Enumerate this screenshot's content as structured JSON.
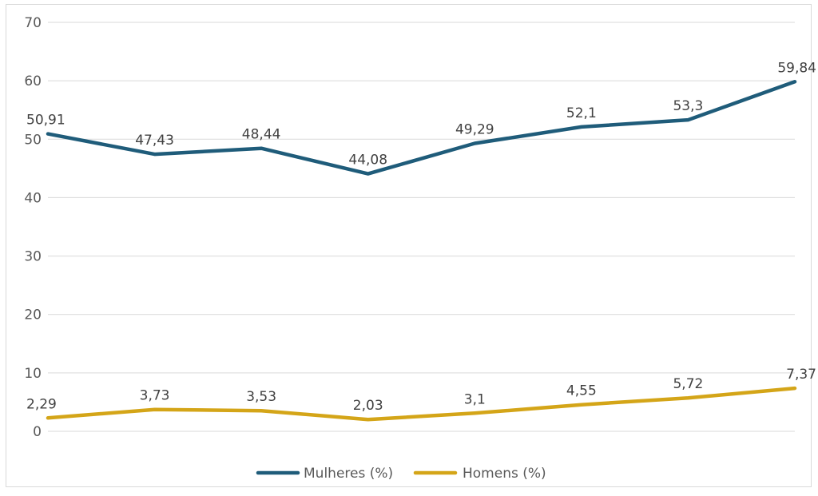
{
  "chart_data": {
    "type": "line",
    "title": "",
    "xlabel": "",
    "ylabel": "",
    "ylim": [
      0,
      70
    ],
    "yticks": [
      0,
      10,
      20,
      30,
      40,
      50,
      60,
      70
    ],
    "ytick_labels": [
      "0",
      "10",
      "20",
      "30",
      "40",
      "50",
      "60",
      "70"
    ],
    "x": [
      1,
      2,
      3,
      4,
      5,
      6,
      7,
      8
    ],
    "grid": true,
    "legend_position": "bottom",
    "series": [
      {
        "name": "Mulheres (%)",
        "color": "#1f5c7a",
        "values": [
          50.91,
          47.43,
          48.44,
          44.08,
          49.29,
          52.1,
          53.3,
          59.84
        ],
        "labels": [
          "50,91",
          "47,43",
          "48,44",
          "44,08",
          "49,29",
          "52,1",
          "53,3",
          "59,84"
        ]
      },
      {
        "name": "Homens (%)",
        "color": "#d4a518",
        "values": [
          2.29,
          3.73,
          3.53,
          2.03,
          3.1,
          4.55,
          5.72,
          7.37
        ],
        "labels": [
          "2,29",
          "3,73",
          "3,53",
          "2,03",
          "3,1",
          "4,55",
          "5,72",
          "7,37"
        ]
      }
    ]
  }
}
